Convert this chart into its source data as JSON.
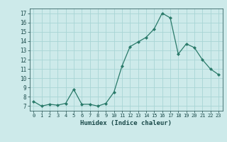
{
  "x": [
    0,
    1,
    2,
    3,
    4,
    5,
    6,
    7,
    8,
    9,
    10,
    11,
    12,
    13,
    14,
    15,
    16,
    17,
    18,
    19,
    20,
    21,
    22,
    23
  ],
  "y": [
    7.5,
    7.0,
    7.2,
    7.1,
    7.3,
    8.8,
    7.2,
    7.2,
    7.0,
    7.3,
    8.5,
    11.3,
    13.4,
    13.9,
    14.4,
    15.3,
    17.0,
    16.5,
    12.6,
    13.7,
    13.3,
    12.0,
    11.0,
    10.4
  ],
  "xlabel": "Humidex (Indice chaleur)",
  "ylabel": "",
  "xlim": [
    -0.5,
    23.5
  ],
  "ylim": [
    6.5,
    17.5
  ],
  "yticks": [
    7,
    8,
    9,
    10,
    11,
    12,
    13,
    14,
    15,
    16,
    17
  ],
  "xticks": [
    0,
    1,
    2,
    3,
    4,
    5,
    6,
    7,
    8,
    9,
    10,
    11,
    12,
    13,
    14,
    15,
    16,
    17,
    18,
    19,
    20,
    21,
    22,
    23
  ],
  "xtick_labels": [
    "0",
    "1",
    "2",
    "3",
    "4",
    "5",
    "6",
    "7",
    "8",
    "9",
    "10",
    "11",
    "12",
    "13",
    "14",
    "15",
    "16",
    "17",
    "18",
    "19",
    "20",
    "21",
    "22",
    "23"
  ],
  "line_color": "#2a7a6a",
  "marker": "D",
  "marker_size": 2,
  "bg_color": "#cdeaea",
  "grid_color": "#a8d5d5",
  "font_color": "#1a4a4a",
  "font_name": "monospace"
}
